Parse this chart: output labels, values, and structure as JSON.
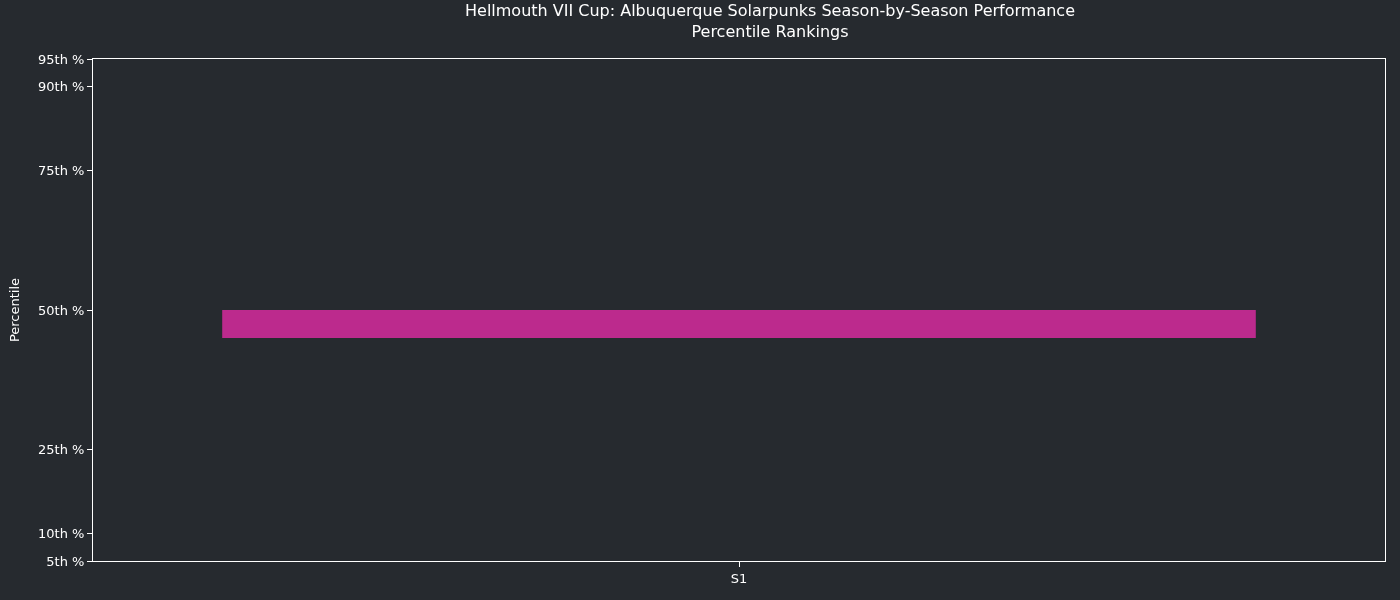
{
  "chart_data": {
    "type": "bar",
    "title": "Hellmouth VII Cup: Albuquerque Solarpunks Season-by-Season Performance\nPercentile Rankings",
    "ylabel": "Percentile",
    "categories": [
      "S1"
    ],
    "values": [
      5
    ],
    "base": [
      45
    ],
    "color": "#bc2a8d",
    "ylim": [
      5,
      95
    ],
    "yticks": [
      {
        "value": 5,
        "label": "5th %"
      },
      {
        "value": 10,
        "label": "10th %"
      },
      {
        "value": 25,
        "label": "25th %"
      },
      {
        "value": 50,
        "label": "50th %"
      },
      {
        "value": 75,
        "label": "75th %"
      },
      {
        "value": 90,
        "label": "90th %"
      },
      {
        "value": 95,
        "label": "95th %"
      }
    ],
    "grid": false,
    "legend": false
  }
}
